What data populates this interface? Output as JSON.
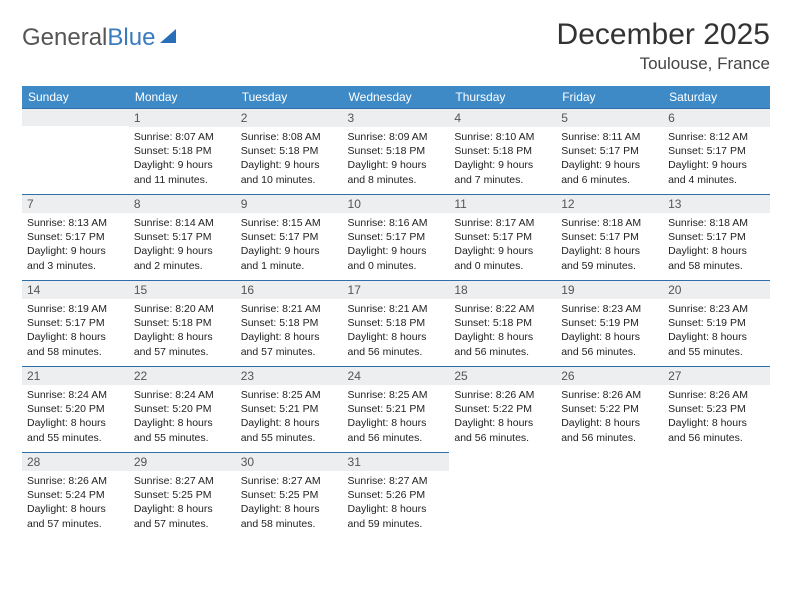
{
  "logo": {
    "part1": "General",
    "part2": "Blue"
  },
  "title": "December 2025",
  "location": "Toulouse, France",
  "dayHeaders": [
    "Sunday",
    "Monday",
    "Tuesday",
    "Wednesday",
    "Thursday",
    "Friday",
    "Saturday"
  ],
  "colors": {
    "headerBg": "#3e8ac7",
    "headerText": "#ffffff",
    "dayNumBg": "#eceef0",
    "dayBorder": "#2e6fa8",
    "logoBlue": "#3a7abf",
    "textColor": "#222222"
  },
  "typography": {
    "title_fontsize": 30,
    "location_fontsize": 17,
    "dayheader_fontsize": 12,
    "daynum_fontsize": 12,
    "body_fontsize": 10.5
  },
  "startOffset": 1,
  "days": [
    {
      "n": "1",
      "sunrise": "8:07 AM",
      "sunset": "5:18 PM",
      "daylight": "9 hours and 11 minutes."
    },
    {
      "n": "2",
      "sunrise": "8:08 AM",
      "sunset": "5:18 PM",
      "daylight": "9 hours and 10 minutes."
    },
    {
      "n": "3",
      "sunrise": "8:09 AM",
      "sunset": "5:18 PM",
      "daylight": "9 hours and 8 minutes."
    },
    {
      "n": "4",
      "sunrise": "8:10 AM",
      "sunset": "5:18 PM",
      "daylight": "9 hours and 7 minutes."
    },
    {
      "n": "5",
      "sunrise": "8:11 AM",
      "sunset": "5:17 PM",
      "daylight": "9 hours and 6 minutes."
    },
    {
      "n": "6",
      "sunrise": "8:12 AM",
      "sunset": "5:17 PM",
      "daylight": "9 hours and 4 minutes."
    },
    {
      "n": "7",
      "sunrise": "8:13 AM",
      "sunset": "5:17 PM",
      "daylight": "9 hours and 3 minutes."
    },
    {
      "n": "8",
      "sunrise": "8:14 AM",
      "sunset": "5:17 PM",
      "daylight": "9 hours and 2 minutes."
    },
    {
      "n": "9",
      "sunrise": "8:15 AM",
      "sunset": "5:17 PM",
      "daylight": "9 hours and 1 minute."
    },
    {
      "n": "10",
      "sunrise": "8:16 AM",
      "sunset": "5:17 PM",
      "daylight": "9 hours and 0 minutes."
    },
    {
      "n": "11",
      "sunrise": "8:17 AM",
      "sunset": "5:17 PM",
      "daylight": "9 hours and 0 minutes."
    },
    {
      "n": "12",
      "sunrise": "8:18 AM",
      "sunset": "5:17 PM",
      "daylight": "8 hours and 59 minutes."
    },
    {
      "n": "13",
      "sunrise": "8:18 AM",
      "sunset": "5:17 PM",
      "daylight": "8 hours and 58 minutes."
    },
    {
      "n": "14",
      "sunrise": "8:19 AM",
      "sunset": "5:17 PM",
      "daylight": "8 hours and 58 minutes."
    },
    {
      "n": "15",
      "sunrise": "8:20 AM",
      "sunset": "5:18 PM",
      "daylight": "8 hours and 57 minutes."
    },
    {
      "n": "16",
      "sunrise": "8:21 AM",
      "sunset": "5:18 PM",
      "daylight": "8 hours and 57 minutes."
    },
    {
      "n": "17",
      "sunrise": "8:21 AM",
      "sunset": "5:18 PM",
      "daylight": "8 hours and 56 minutes."
    },
    {
      "n": "18",
      "sunrise": "8:22 AM",
      "sunset": "5:18 PM",
      "daylight": "8 hours and 56 minutes."
    },
    {
      "n": "19",
      "sunrise": "8:23 AM",
      "sunset": "5:19 PM",
      "daylight": "8 hours and 56 minutes."
    },
    {
      "n": "20",
      "sunrise": "8:23 AM",
      "sunset": "5:19 PM",
      "daylight": "8 hours and 55 minutes."
    },
    {
      "n": "21",
      "sunrise": "8:24 AM",
      "sunset": "5:20 PM",
      "daylight": "8 hours and 55 minutes."
    },
    {
      "n": "22",
      "sunrise": "8:24 AM",
      "sunset": "5:20 PM",
      "daylight": "8 hours and 55 minutes."
    },
    {
      "n": "23",
      "sunrise": "8:25 AM",
      "sunset": "5:21 PM",
      "daylight": "8 hours and 55 minutes."
    },
    {
      "n": "24",
      "sunrise": "8:25 AM",
      "sunset": "5:21 PM",
      "daylight": "8 hours and 56 minutes."
    },
    {
      "n": "25",
      "sunrise": "8:26 AM",
      "sunset": "5:22 PM",
      "daylight": "8 hours and 56 minutes."
    },
    {
      "n": "26",
      "sunrise": "8:26 AM",
      "sunset": "5:22 PM",
      "daylight": "8 hours and 56 minutes."
    },
    {
      "n": "27",
      "sunrise": "8:26 AM",
      "sunset": "5:23 PM",
      "daylight": "8 hours and 56 minutes."
    },
    {
      "n": "28",
      "sunrise": "8:26 AM",
      "sunset": "5:24 PM",
      "daylight": "8 hours and 57 minutes."
    },
    {
      "n": "29",
      "sunrise": "8:27 AM",
      "sunset": "5:25 PM",
      "daylight": "8 hours and 57 minutes."
    },
    {
      "n": "30",
      "sunrise": "8:27 AM",
      "sunset": "5:25 PM",
      "daylight": "8 hours and 58 minutes."
    },
    {
      "n": "31",
      "sunrise": "8:27 AM",
      "sunset": "5:26 PM",
      "daylight": "8 hours and 59 minutes."
    }
  ],
  "labels": {
    "sunrise": "Sunrise:",
    "sunset": "Sunset:",
    "daylight": "Daylight:"
  }
}
